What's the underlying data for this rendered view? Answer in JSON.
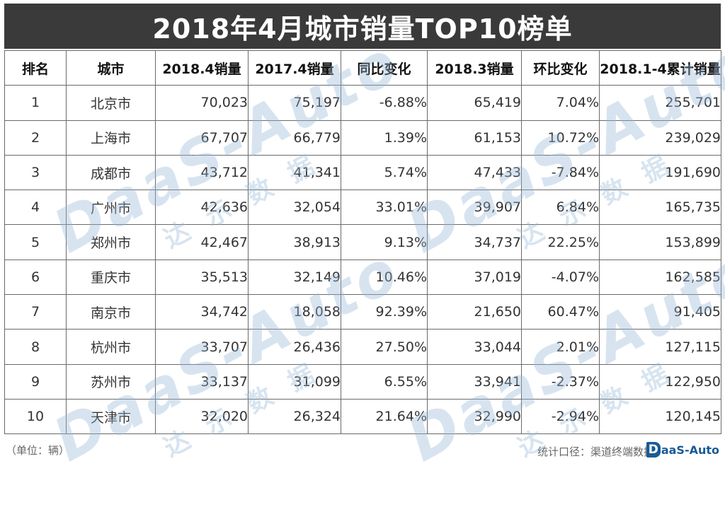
{
  "title": "2018年4月城市销量TOP10榜单",
  "table": {
    "headers": [
      "排名",
      "城市",
      "2018.4销量",
      "2017.4销量",
      "同比变化",
      "2018.3销量",
      "环比变化",
      "2018.1-4累计销量"
    ],
    "rows": [
      [
        "1",
        "北京市",
        "70,023",
        "75,197",
        "-6.88%",
        "65,419",
        "7.04%",
        "255,701"
      ],
      [
        "2",
        "上海市",
        "67,707",
        "66,779",
        "1.39%",
        "61,153",
        "10.72%",
        "239,029"
      ],
      [
        "3",
        "成都市",
        "43,712",
        "41,341",
        "5.74%",
        "47,433",
        "-7.84%",
        "191,690"
      ],
      [
        "4",
        "广州市",
        "42,636",
        "32,054",
        "33.01%",
        "39,907",
        "6.84%",
        "165,735"
      ],
      [
        "5",
        "郑州市",
        "42,467",
        "38,913",
        "9.13%",
        "34,737",
        "22.25%",
        "153,899"
      ],
      [
        "6",
        "重庆市",
        "35,513",
        "32,149",
        "10.46%",
        "37,019",
        "-4.07%",
        "162,585"
      ],
      [
        "7",
        "南京市",
        "34,742",
        "18,058",
        "92.39%",
        "21,650",
        "60.47%",
        "91,405"
      ],
      [
        "8",
        "杭州市",
        "33,707",
        "26,436",
        "27.50%",
        "33,044",
        "2.01%",
        "127,115"
      ],
      [
        "9",
        "苏州市",
        "33,137",
        "31,099",
        "6.55%",
        "33,941",
        "-2.37%",
        "122,950"
      ],
      [
        "10",
        "天津市",
        "32,020",
        "26,324",
        "21.64%",
        "32,990",
        "-2.94%",
        "120,145"
      ]
    ]
  },
  "watermark": {
    "text": "DaaS-Auto",
    "sub": "达示数据"
  },
  "footer": {
    "unit_note": "（单位：辆）",
    "source": "统计口径：渠道终端数据",
    "logo_text": "aaS-Auto",
    "logo_mark": "D"
  },
  "colors": {
    "title_bg": "#3a3a3a",
    "title_fg": "#ffffff",
    "border": "#6a6a6a",
    "logo": "#1a5b94"
  }
}
